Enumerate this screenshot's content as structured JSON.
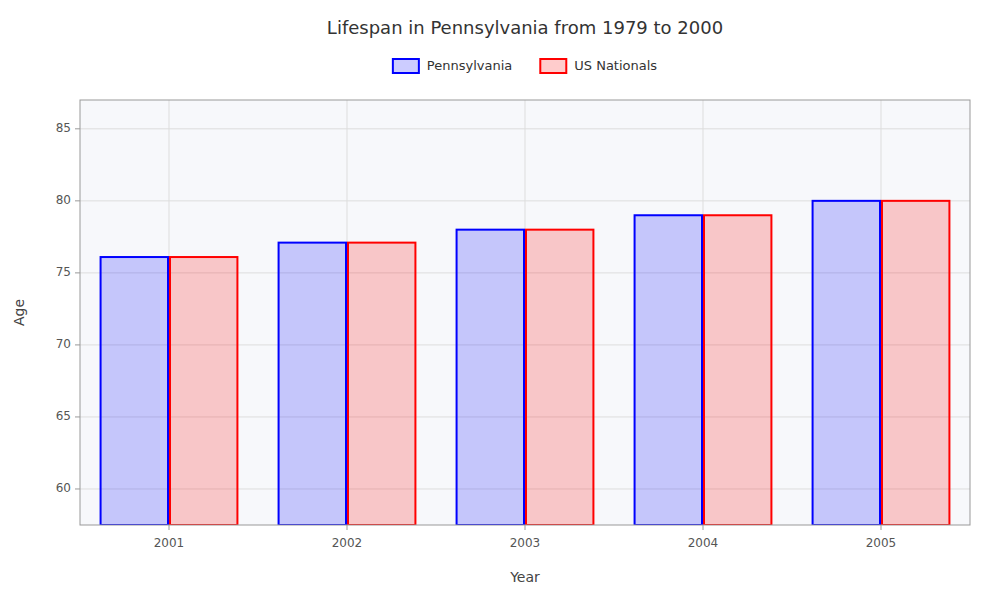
{
  "chart_data": {
    "type": "bar",
    "title": "Lifespan in Pennsylvania from 1979 to 2000",
    "x_label": "Year",
    "y_label": "Age",
    "categories": [
      "2001",
      "2002",
      "2003",
      "2004",
      "2005"
    ],
    "series": [
      {
        "name": "Pennsylvania",
        "color": "#0000ff",
        "values": [
          76.1,
          77.1,
          78.0,
          79.0,
          80.0
        ]
      },
      {
        "name": "US Nationals",
        "color": "#ff0000",
        "values": [
          76.1,
          77.1,
          78.0,
          79.0,
          80.0
        ]
      }
    ],
    "ylim": [
      57.5,
      87
    ],
    "yticks": [
      60,
      65,
      70,
      75,
      80,
      85
    ],
    "grid": true,
    "legend": "top"
  }
}
